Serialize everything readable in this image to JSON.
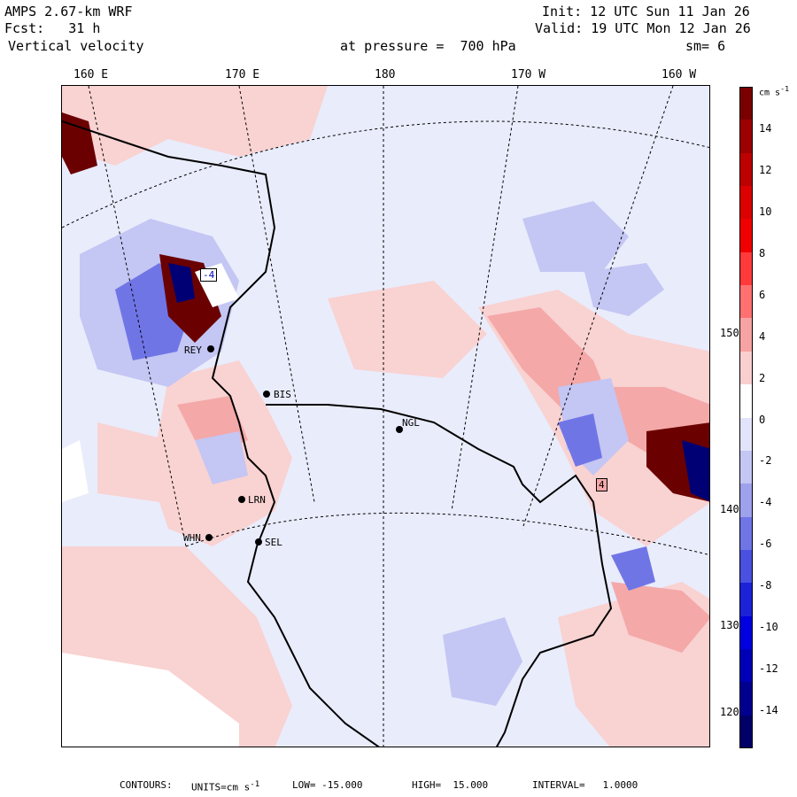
{
  "header": {
    "model": "AMPS 2.67-km WRF",
    "init": "Init: 12 UTC Sun 11 Jan 26",
    "fcst": "Fcst:   31 h",
    "valid": "Valid: 19 UTC Mon 12 Jan 26",
    "field": "Vertical velocity",
    "pressure": "at pressure =  700 hPa",
    "smooth": "sm= 6"
  },
  "longitude_labels": [
    "160 E",
    "170 E",
    "180",
    "170 W",
    "160 W"
  ],
  "latitude_labels": [
    "150 W",
    "140 W",
    "130 W",
    "120 W"
  ],
  "stations": [
    "BIS",
    "NGL",
    "REY",
    "LRN",
    "WHN",
    "SEL"
  ],
  "boxed_labels": [
    "-4",
    "4"
  ],
  "colorbar": {
    "units": "cm s",
    "units_sup": "-1",
    "tick_labels": [
      "14",
      "12",
      "10",
      "8",
      "6",
      "4",
      "2",
      "0",
      "-2",
      "-4",
      "-6",
      "-8",
      "-10",
      "-12",
      "-14"
    ],
    "colors": [
      "#7a0000",
      "#9c0000",
      "#bd0000",
      "#dc0000",
      "#f00000",
      "#ff3a3a",
      "#ff7070",
      "#f7a3a3",
      "#f9cfcf",
      "#ffffff",
      "#e2e4fb",
      "#c4c6f3",
      "#9ea1ec",
      "#7075e6",
      "#4a50e0",
      "#1c22d8",
      "#0000e0",
      "#0000b8",
      "#000090",
      "#000068"
    ]
  },
  "footer": {
    "contours": "CONTOURS:",
    "units": "UNITS=cm s",
    "units_sup": "-1",
    "low": "LOW= -15.000",
    "high": "HIGH=  15.000",
    "interval": "INTERVAL=   1.0000"
  }
}
